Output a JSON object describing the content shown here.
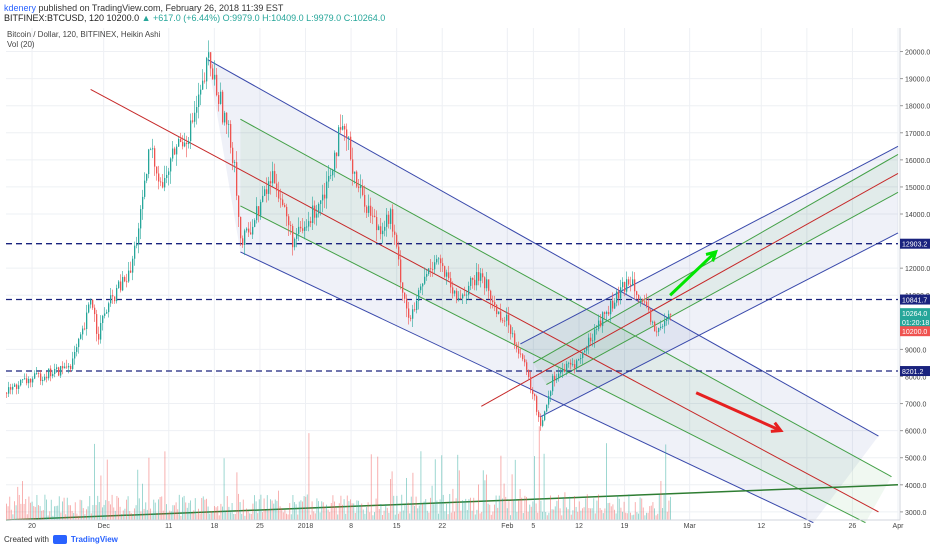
{
  "header": {
    "author": "kdenery",
    "published_text": "published on TradingView.com, February 26, 2018 11:39 EST",
    "symbol": "BITFINEX:BTCUSD, 120",
    "last_price": "10200.0",
    "change": "▲ +617.0 (+6.44%)",
    "ohlc": "O:9979.0 H:10409.0 L:9979.0 C:10264.0"
  },
  "legend": {
    "series_title": "Bitcoin / Dollar, 120, BITFINEX, Heikin Ashi",
    "volume_label": "Vol (20)"
  },
  "footer": {
    "created_with": "Created with",
    "brand": "TradingView"
  },
  "colors": {
    "up": "#26a69a",
    "down": "#ef5350",
    "channel_line": "#3949ab",
    "level_line": "#1a237e",
    "mid_line": "#c62828",
    "parallel_line": "#43a047",
    "arrow_up": "#00e600",
    "arrow_down": "#e62020",
    "price_badge_last": "#26a69a",
    "price_badge_low": "#ef5350"
  },
  "chart_data": {
    "type": "candlestick",
    "x_range": [
      "2017-11-16",
      "2018-04-02"
    ],
    "y_range": [
      2700,
      20500
    ],
    "price_path": [
      [
        "2017-11-16",
        7400
      ],
      [
        "2017-11-18",
        7750
      ],
      [
        "2017-11-20",
        7900
      ],
      [
        "2017-11-22",
        8100
      ],
      [
        "2017-11-24",
        8200
      ],
      [
        "2017-11-26",
        8500
      ],
      [
        "2017-11-28",
        9800
      ],
      [
        "2017-11-29",
        11000
      ],
      [
        "2017-11-30",
        9500
      ],
      [
        "2017-12-01",
        10300
      ],
      [
        "2017-12-03",
        11200
      ],
      [
        "2017-12-05",
        11800
      ],
      [
        "2017-12-07",
        14500
      ],
      [
        "2017-12-08",
        16500
      ],
      [
        "2017-12-10",
        15000
      ],
      [
        "2017-12-12",
        16500
      ],
      [
        "2017-12-14",
        17000
      ],
      [
        "2017-12-16",
        18500
      ],
      [
        "2017-12-17",
        19700
      ],
      [
        "2017-12-19",
        18000
      ],
      [
        "2017-12-21",
        16000
      ],
      [
        "2017-12-22",
        12800
      ],
      [
        "2017-12-24",
        13800
      ],
      [
        "2017-12-27",
        15500
      ],
      [
        "2017-12-30",
        13000
      ],
      [
        "2018-01-01",
        13500
      ],
      [
        "2018-01-04",
        15000
      ],
      [
        "2018-01-06",
        16800
      ],
      [
        "2018-01-07",
        17000
      ],
      [
        "2018-01-09",
        15000
      ],
      [
        "2018-01-12",
        13500
      ],
      [
        "2018-01-14",
        13900
      ],
      [
        "2018-01-16",
        11000
      ],
      [
        "2018-01-17",
        10000
      ],
      [
        "2018-01-19",
        11500
      ],
      [
        "2018-01-21",
        12500
      ],
      [
        "2018-01-24",
        10800
      ],
      [
        "2018-01-28",
        11800
      ],
      [
        "2018-01-30",
        10500
      ],
      [
        "2018-02-01",
        10000
      ],
      [
        "2018-02-03",
        8800
      ],
      [
        "2018-02-05",
        7200
      ],
      [
        "2018-02-06",
        6200
      ],
      [
        "2018-02-08",
        8000
      ],
      [
        "2018-02-10",
        8300
      ],
      [
        "2018-02-12",
        8600
      ],
      [
        "2018-02-15",
        10000
      ],
      [
        "2018-02-18",
        11000
      ],
      [
        "2018-02-20",
        11700
      ],
      [
        "2018-02-22",
        10500
      ],
      [
        "2018-02-24",
        9600
      ],
      [
        "2018-02-26",
        10264
      ]
    ],
    "horizontal_levels": [
      12903.2,
      10841.7,
      8201.2
    ],
    "price_labels": [
      {
        "text": "12903.2",
        "kind": "level"
      },
      {
        "text": "10841.7",
        "kind": "level"
      },
      {
        "text": "10264.0",
        "kind": "last"
      },
      {
        "text": "01:20:18",
        "kind": "countdown"
      },
      {
        "text": "10200.0",
        "kind": "low"
      },
      {
        "text": "8201.2",
        "kind": "level"
      }
    ],
    "y_ticks": [
      {
        "v": 20000,
        "label": "20000.0"
      },
      {
        "v": 19000,
        "label": "19000.0"
      },
      {
        "v": 18000,
        "label": "18000.0"
      },
      {
        "v": 17000,
        "label": "17000.0"
      },
      {
        "v": 16000,
        "label": "16000.0"
      },
      {
        "v": 15000,
        "label": "15000.0"
      },
      {
        "v": 14000,
        "label": "14000.0"
      },
      {
        "v": 12000,
        "label": "12000.0"
      },
      {
        "v": 11000,
        "label": "11000.0"
      },
      {
        "v": 9000,
        "label": "9000.0"
      },
      {
        "v": 8000,
        "label": "8000.0"
      },
      {
        "v": 7000,
        "label": "7000.0"
      },
      {
        "v": 6000,
        "label": "6000.0"
      },
      {
        "v": 5000,
        "label": "5000.0"
      },
      {
        "v": 4000,
        "label": "4000.0"
      },
      {
        "v": 3000,
        "label": "3000.0"
      }
    ],
    "x_ticks": [
      {
        "date": "2017-11-20",
        "label": "20"
      },
      {
        "date": "2017-12-01",
        "label": "Dec"
      },
      {
        "date": "2017-12-11",
        "label": "11"
      },
      {
        "date": "2017-12-18",
        "label": "18"
      },
      {
        "date": "2017-12-25",
        "label": "25"
      },
      {
        "date": "2018-01-01",
        "label": "2018"
      },
      {
        "date": "2018-01-08",
        "label": "8"
      },
      {
        "date": "2018-01-15",
        "label": "15"
      },
      {
        "date": "2018-01-22",
        "label": "22"
      },
      {
        "date": "2018-02-01",
        "label": "Feb"
      },
      {
        "date": "2018-02-05",
        "label": "5"
      },
      {
        "date": "2018-02-12",
        "label": "12"
      },
      {
        "date": "2018-02-19",
        "label": "19"
      },
      {
        "date": "2018-03-01",
        "label": "Mar"
      },
      {
        "date": "2018-03-12",
        "label": "12"
      },
      {
        "date": "2018-03-19",
        "label": "19"
      },
      {
        "date": "2018-03-26",
        "label": "26"
      },
      {
        "date": "2018-04-02",
        "label": "Apr"
      }
    ],
    "descending_channel": {
      "upper": [
        [
          "2017-12-17",
          19700
        ],
        [
          "2018-03-30",
          5800
        ]
      ],
      "lower": [
        [
          "2017-12-22",
          12600
        ],
        [
          "2018-03-20",
          2600
        ]
      ],
      "median": [
        [
          "2017-11-29",
          18600
        ],
        [
          "2018-03-30",
          3000
        ]
      ],
      "inner_upper": [
        [
          "2017-12-22",
          17500
        ],
        [
          "2018-04-01",
          4300
        ]
      ],
      "inner_lower": [
        [
          "2017-12-22",
          14300
        ],
        [
          "2018-03-28",
          2600
        ]
      ]
    },
    "ascending_channel": {
      "upper": [
        [
          "2018-02-03",
          9200
        ],
        [
          "2018-04-02",
          16500
        ]
      ],
      "lower": [
        [
          "2018-02-06",
          6500
        ],
        [
          "2018-04-02",
          13300
        ]
      ],
      "median": [
        [
          "2018-01-28",
          6900
        ],
        [
          "2018-04-02",
          15500
        ]
      ],
      "inner_upper": [
        [
          "2018-02-05",
          8500
        ],
        [
          "2018-04-02",
          16200
        ]
      ],
      "inner_lower": [
        [
          "2018-02-07",
          7700
        ],
        [
          "2018-04-02",
          14800
        ]
      ]
    },
    "long_trendline": [
      [
        "2017-11-16",
        2700
      ],
      [
        "2018-04-02",
        4000
      ]
    ],
    "arrows": [
      {
        "direction": "up",
        "from": [
          "2018-02-26",
          11000
        ],
        "to": [
          "2018-03-05",
          12600
        ]
      },
      {
        "direction": "down",
        "from": [
          "2018-03-02",
          7400
        ],
        "to": [
          "2018-03-15",
          6000
        ]
      }
    ],
    "volume_note": "volume histogram along bottom, up/down colored",
    "grid": true
  }
}
